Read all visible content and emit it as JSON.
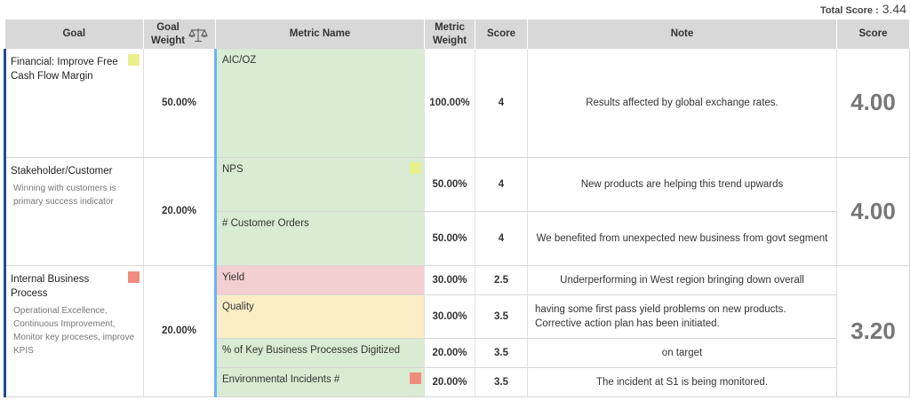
{
  "total_score": {
    "label": "Total Score :",
    "value": "3.44"
  },
  "headers": {
    "goal": "Goal",
    "goal_weight_line1": "Goal",
    "goal_weight_line2": "Weight",
    "metric_name": "Metric Name",
    "metric_weight_line1": "Metric",
    "metric_weight_line2": "Weight",
    "score": "Score",
    "note": "Note",
    "final_score": "Score"
  },
  "icons": {
    "weight_icon": "balance-scale-icon"
  },
  "colors": {
    "goal_bar": "#1f4f8a",
    "metric_bar": "#6ab4f5",
    "metric_green": "#d9ebd2",
    "metric_red": "#f4cfd1",
    "metric_yellow": "#fbedc6",
    "flag_yellow": "#e9ef8c",
    "flag_red": "#f08c7e"
  },
  "goals": [
    {
      "title": "Financial: Improve Free Cash Flow Margin",
      "description": "",
      "weight": "50.00%",
      "final_score": "4.00",
      "flag": "yellow",
      "metrics": [
        {
          "name": "AIC/OZ",
          "weight": "100.00%",
          "score": "4",
          "note": "Results affected by global exchange rates.",
          "status": "green",
          "flag": ""
        }
      ]
    },
    {
      "title": "Stakeholder/Customer",
      "description": "Winning with customers is primary success indicator",
      "weight": "20.00%",
      "final_score": "4.00",
      "flag": "",
      "metrics": [
        {
          "name": "NPS",
          "weight": "50.00%",
          "score": "4",
          "note": "New products are helping this trend upwards",
          "status": "green",
          "flag": "yellow"
        },
        {
          "name": "# Customer Orders",
          "weight": "50.00%",
          "score": "4",
          "note": "We benefited from unexpected new business from govt segment",
          "status": "green",
          "flag": ""
        }
      ]
    },
    {
      "title": "Internal Business Process",
      "description": "Operational Excellence, Continuous Improvement, Monitor key proceses, improve KPIS",
      "weight": "20.00%",
      "final_score": "3.20",
      "flag": "red",
      "metrics": [
        {
          "name": "Yield",
          "weight": "30.00%",
          "score": "2.5",
          "note": "Underperforming in West region bringing down overall",
          "status": "red",
          "flag": ""
        },
        {
          "name": "Quality",
          "weight": "30.00%",
          "score": "3.5",
          "note": "having some first pass yield problems on new products. Corrective action plan has been initiated.",
          "status": "yellow",
          "flag": ""
        },
        {
          "name": "% of Key Business Processes Digitized",
          "weight": "20.00%",
          "score": "3.5",
          "note": "on target",
          "status": "green",
          "flag": ""
        },
        {
          "name": "Environmental Incidents #",
          "weight": "20.00%",
          "score": "3.5",
          "note": "The incident at S1 is being monitored.",
          "status": "green",
          "flag": "red"
        }
      ]
    }
  ]
}
